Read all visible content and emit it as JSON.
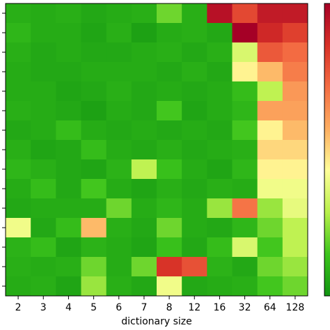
{
  "chart_data": {
    "type": "heatmap",
    "x_label": "dictionary size",
    "categories": [
      "2",
      "3",
      "4",
      "5",
      "6",
      "7",
      "8",
      "12",
      "16",
      "32",
      "64",
      "128"
    ],
    "colormap": [
      "#119411",
      "#3cc41c",
      "#b8f04a",
      "#ffff99",
      "#fdae61",
      "#f46d43",
      "#d73027",
      "#a50026"
    ],
    "values": [
      [
        0.08,
        0.07,
        0.08,
        0.06,
        0.07,
        0.08,
        0.2,
        0.08,
        0.95,
        0.8,
        0.92,
        0.92
      ],
      [
        0.1,
        0.07,
        0.07,
        0.05,
        0.08,
        0.04,
        0.07,
        0.08,
        0.06,
        1.0,
        0.88,
        0.82
      ],
      [
        0.08,
        0.06,
        0.07,
        0.06,
        0.06,
        0.07,
        0.08,
        0.06,
        0.08,
        0.35,
        0.76,
        0.72
      ],
      [
        0.07,
        0.06,
        0.06,
        0.07,
        0.07,
        0.07,
        0.06,
        0.08,
        0.06,
        0.45,
        0.55,
        0.68
      ],
      [
        0.07,
        0.07,
        0.05,
        0.06,
        0.08,
        0.06,
        0.07,
        0.06,
        0.07,
        0.12,
        0.3,
        0.62
      ],
      [
        0.08,
        0.07,
        0.06,
        0.04,
        0.07,
        0.06,
        0.15,
        0.05,
        0.07,
        0.1,
        0.6,
        0.6
      ],
      [
        0.06,
        0.07,
        0.12,
        0.07,
        0.06,
        0.07,
        0.06,
        0.07,
        0.06,
        0.15,
        0.45,
        0.55
      ],
      [
        0.08,
        0.05,
        0.06,
        0.12,
        0.07,
        0.06,
        0.08,
        0.06,
        0.07,
        0.08,
        0.5,
        0.5
      ],
      [
        0.1,
        0.08,
        0.06,
        0.05,
        0.09,
        0.3,
        0.13,
        0.07,
        0.05,
        0.1,
        0.45,
        0.45
      ],
      [
        0.07,
        0.12,
        0.06,
        0.15,
        0.07,
        0.05,
        0.08,
        0.06,
        0.08,
        0.07,
        0.4,
        0.4
      ],
      [
        0.06,
        0.07,
        0.07,
        0.07,
        0.2,
        0.07,
        0.1,
        0.07,
        0.25,
        0.7,
        0.25,
        0.38
      ],
      [
        0.4,
        0.06,
        0.12,
        0.55,
        0.08,
        0.06,
        0.2,
        0.07,
        0.06,
        0.1,
        0.2,
        0.3
      ],
      [
        0.09,
        0.12,
        0.05,
        0.09,
        0.07,
        0.05,
        0.13,
        0.06,
        0.12,
        0.35,
        0.15,
        0.3
      ],
      [
        0.08,
        0.07,
        0.08,
        0.2,
        0.07,
        0.2,
        0.85,
        0.78,
        0.09,
        0.06,
        0.2,
        0.25
      ],
      [
        0.07,
        0.08,
        0.05,
        0.25,
        0.08,
        0.06,
        0.4,
        0.06,
        0.07,
        0.08,
        0.15,
        0.2
      ]
    ]
  }
}
